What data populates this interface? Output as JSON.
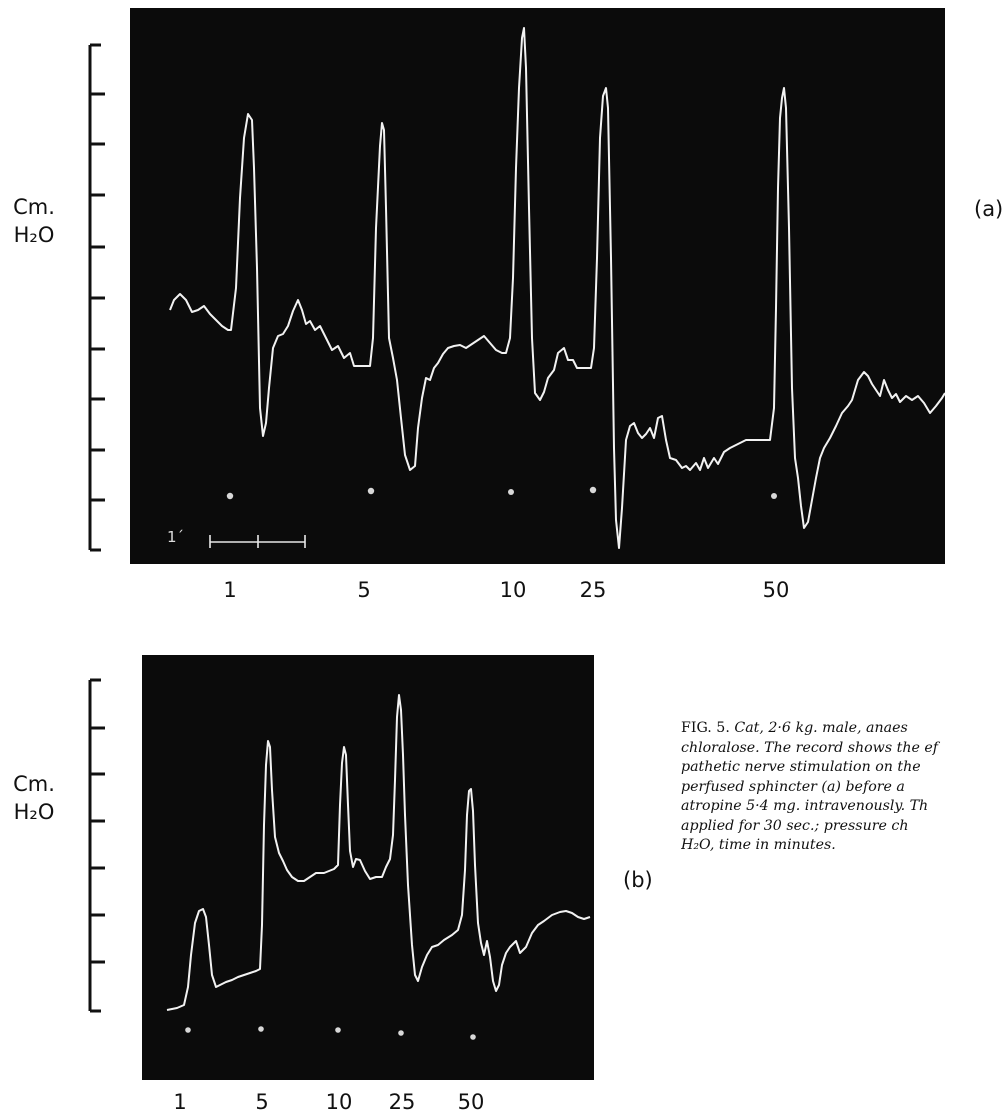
{
  "colors": {
    "panel": "#0b0b0b",
    "trace": "#f2f2f2",
    "ink": "#111111"
  },
  "panel_a": {
    "tag": "(a)",
    "ylabel_line1": "Cm.",
    "ylabel_line2": "H₂O",
    "timebar_label": "1´",
    "frequencies": [
      "1",
      "5",
      "10",
      "25",
      "50"
    ]
  },
  "panel_b": {
    "tag": "(b)",
    "ylabel_line1": "Cm.",
    "ylabel_line2": "H₂O",
    "frequencies": [
      "1",
      "5",
      "10",
      "25",
      "50"
    ]
  },
  "caption": {
    "lead": "FIG. 5.",
    "lines": [
      "Cat, 2·6 kg. male, anaes",
      "chloralose. The record shows the ef",
      "pathetic nerve stimulation on the",
      "perfused sphincter (a) before a",
      "atropine 5·4 mg. intravenously. Th",
      "applied for 30 sec.; pressure ch",
      "H₂O, time in minutes."
    ]
  }
}
